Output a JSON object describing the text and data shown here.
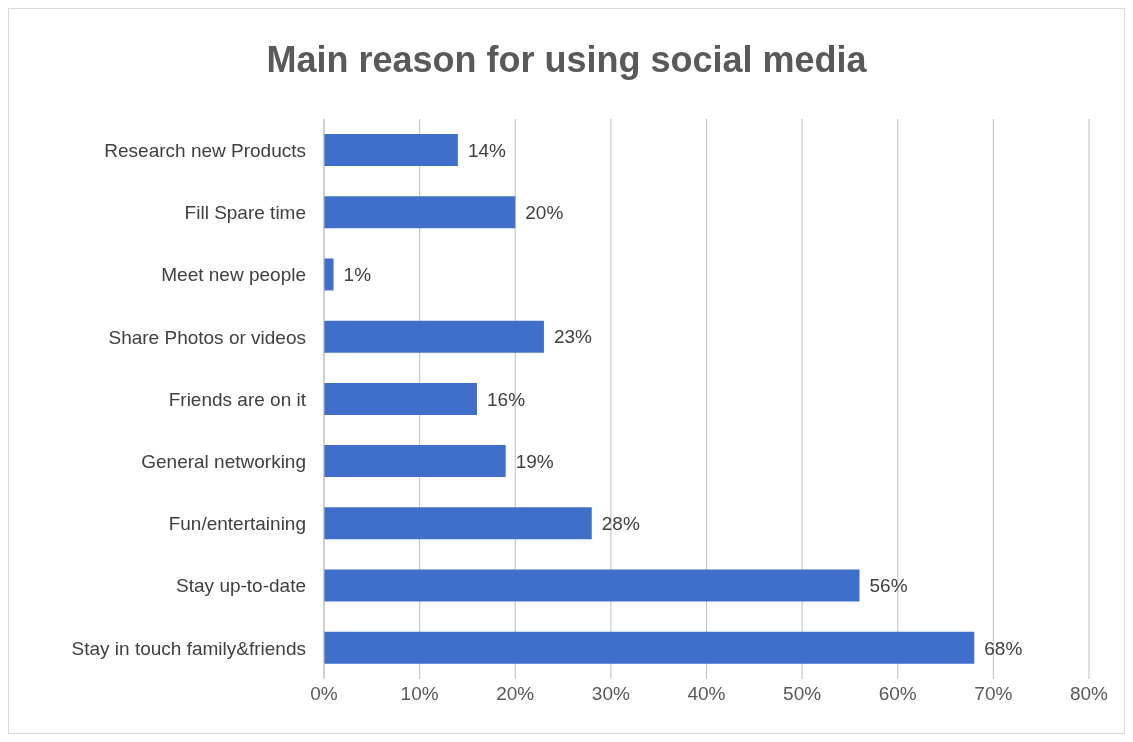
{
  "chart_data": {
    "type": "bar",
    "orientation": "horizontal",
    "title": "Main reason for using social media",
    "categories": [
      "Research new Products",
      "Fill Spare time",
      "Meet new people",
      "Share Photos or videos",
      "Friends are on it",
      "General networking",
      "Fun/entertaining",
      "Stay up-to-date",
      "Stay in touch family&friends"
    ],
    "values": [
      14,
      20,
      1,
      23,
      16,
      19,
      28,
      56,
      68
    ],
    "value_labels": [
      "14%",
      "20%",
      "1%",
      "23%",
      "16%",
      "19%",
      "28%",
      "56%",
      "68%"
    ],
    "color": "#3f6fca",
    "xlim": [
      0,
      80
    ],
    "xticks": [
      {
        "value": 0,
        "label": "0%"
      },
      {
        "value": 10,
        "label": "10%"
      },
      {
        "value": 20,
        "label": "20%"
      },
      {
        "value": 30,
        "label": "30%"
      },
      {
        "value": 40,
        "label": "40%"
      },
      {
        "value": 50,
        "label": "50%"
      },
      {
        "value": 60,
        "label": "60%"
      },
      {
        "value": 70,
        "label": "70%"
      },
      {
        "value": 80,
        "label": "80%"
      }
    ],
    "grid": "x"
  }
}
